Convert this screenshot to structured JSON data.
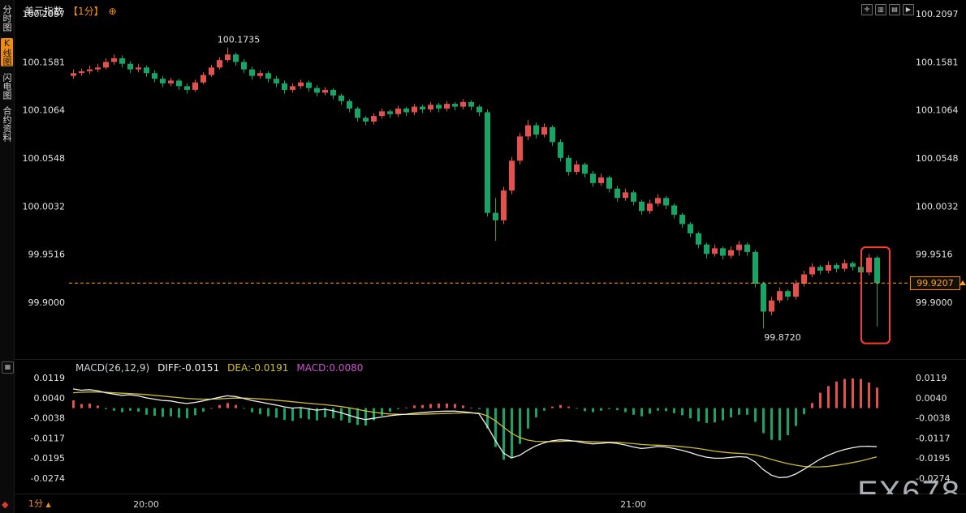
{
  "header": {
    "symbol": "美元指数",
    "interval": "【1分】",
    "settings_glyph": "⊕"
  },
  "toolbar": {
    "icons": [
      {
        "name": "crosshair",
        "glyph": "✛"
      },
      {
        "name": "chart-window",
        "glyph": "▥"
      },
      {
        "name": "indicators",
        "glyph": "▤"
      },
      {
        "name": "collapse",
        "glyph": "▶"
      }
    ]
  },
  "sidebar": {
    "items": [
      {
        "label": "分时图",
        "active": false
      },
      {
        "label": "K线图",
        "active": true
      },
      {
        "label": "闪电图",
        "active": false
      },
      {
        "label": "合约资料",
        "active": false
      }
    ],
    "tool_glyph": "▦",
    "logo_glyph": "◆"
  },
  "footer": {
    "interval_label": "1分",
    "arrow": "▲",
    "watermark": "FX678"
  },
  "price_tag": {
    "value": "99.9207"
  },
  "chart_data": {
    "type": "candlestick",
    "colors": {
      "up": "#e3504d",
      "down": "#17a566",
      "last_price_line": "#ffa21a",
      "high_label": "#ff5d5d",
      "low_label": "#27c184",
      "diff_line": "#f0f0f0",
      "dea_line": "#cdbd2d",
      "highlight_box": "#ff3c28",
      "axis_text": "#e3e3e5"
    },
    "main": {
      "y_ticks": [
        "100.2097",
        "100.1581",
        "100.1064",
        "100.0548",
        "100.0032",
        "99.9516",
        "99.9000"
      ],
      "x_ticks": [
        {
          "label": "20:00",
          "index": 9
        },
        {
          "label": "21:00",
          "index": 69
        }
      ],
      "high_label": {
        "text": "100.1735",
        "index": 19
      },
      "low_label": {
        "text": "99.8720",
        "index": 85
      },
      "last_price": "99.9207",
      "highlight_box": {
        "start_index": 98,
        "end_index": 99,
        "top_price": 99.959,
        "bottom_price": 99.856
      },
      "candles": [
        [
          100.143,
          100.15,
          100.14,
          100.146
        ],
        [
          100.146,
          100.151,
          100.143,
          100.148
        ],
        [
          100.148,
          100.154,
          100.145,
          100.15
        ],
        [
          100.15,
          100.156,
          100.147,
          100.152
        ],
        [
          100.152,
          100.162,
          100.15,
          100.158
        ],
        [
          100.158,
          100.166,
          100.155,
          100.162
        ],
        [
          100.162,
          100.165,
          100.152,
          100.156
        ],
        [
          100.156,
          100.159,
          100.146,
          100.15
        ],
        [
          100.15,
          100.156,
          100.147,
          100.152
        ],
        [
          100.152,
          100.154,
          100.142,
          100.146
        ],
        [
          100.146,
          100.149,
          100.136,
          100.14
        ],
        [
          100.14,
          100.143,
          100.131,
          100.135
        ],
        [
          100.135,
          100.141,
          100.132,
          100.138
        ],
        [
          100.138,
          100.14,
          100.128,
          100.132
        ],
        [
          100.132,
          100.135,
          100.124,
          100.128
        ],
        [
          100.128,
          100.139,
          100.126,
          100.136
        ],
        [
          100.136,
          100.147,
          100.134,
          100.144
        ],
        [
          100.144,
          100.155,
          100.142,
          100.152
        ],
        [
          100.152,
          100.163,
          100.15,
          100.16
        ],
        [
          100.16,
          100.1735,
          100.158,
          100.166
        ],
        [
          100.166,
          100.168,
          100.154,
          100.158
        ],
        [
          100.158,
          100.161,
          100.146,
          100.15
        ],
        [
          100.15,
          100.153,
          100.139,
          100.143
        ],
        [
          100.143,
          100.149,
          100.14,
          100.146
        ],
        [
          100.146,
          100.148,
          100.136,
          100.14
        ],
        [
          100.14,
          100.143,
          100.131,
          100.135
        ],
        [
          100.135,
          100.138,
          100.124,
          100.128
        ],
        [
          100.128,
          100.135,
          100.125,
          100.132
        ],
        [
          100.132,
          100.139,
          100.129,
          100.136
        ],
        [
          100.136,
          100.138,
          100.126,
          100.13
        ],
        [
          100.13,
          100.133,
          100.121,
          100.125
        ],
        [
          100.125,
          100.131,
          100.122,
          100.128
        ],
        [
          100.128,
          100.13,
          100.118,
          100.122
        ],
        [
          100.122,
          100.124,
          100.112,
          100.116
        ],
        [
          100.116,
          100.118,
          100.104,
          100.108
        ],
        [
          100.108,
          100.11,
          100.094,
          100.098
        ],
        [
          100.098,
          100.1,
          100.09,
          100.094
        ],
        [
          100.094,
          100.103,
          100.091,
          100.1
        ],
        [
          100.1,
          100.108,
          100.097,
          100.105
        ],
        [
          100.105,
          100.107,
          100.098,
          100.102
        ],
        [
          100.102,
          100.111,
          100.099,
          100.108
        ],
        [
          100.108,
          100.11,
          100.1,
          100.104
        ],
        [
          100.104,
          100.113,
          100.101,
          100.11
        ],
        [
          100.11,
          100.112,
          100.103,
          100.107
        ],
        [
          100.107,
          100.115,
          100.104,
          100.112
        ],
        [
          100.112,
          100.114,
          100.104,
          100.108
        ],
        [
          100.108,
          100.116,
          100.105,
          100.113
        ],
        [
          100.113,
          100.115,
          100.106,
          100.11
        ],
        [
          100.11,
          100.118,
          100.107,
          100.115
        ],
        [
          100.115,
          100.117,
          100.106,
          100.11
        ],
        [
          100.11,
          100.112,
          100.1,
          100.104
        ],
        [
          100.104,
          100.107,
          99.992,
          99.996
        ],
        [
          99.996,
          100.012,
          99.966,
          99.988
        ],
        [
          99.988,
          100.024,
          99.984,
          100.02
        ],
        [
          100.02,
          100.056,
          100.016,
          100.052
        ],
        [
          100.052,
          100.082,
          100.048,
          100.078
        ],
        [
          100.078,
          100.096,
          100.074,
          100.09
        ],
        [
          100.09,
          100.093,
          100.076,
          100.08
        ],
        [
          100.08,
          100.092,
          100.077,
          100.088
        ],
        [
          100.088,
          100.09,
          100.068,
          100.072
        ],
        [
          100.072,
          100.075,
          100.051,
          100.055
        ],
        [
          100.055,
          100.058,
          100.036,
          100.04
        ],
        [
          100.04,
          100.052,
          100.037,
          100.048
        ],
        [
          100.048,
          100.05,
          100.034,
          100.038
        ],
        [
          100.038,
          100.041,
          100.024,
          100.028
        ],
        [
          100.028,
          100.038,
          100.025,
          100.034
        ],
        [
          100.034,
          100.036,
          100.018,
          100.022
        ],
        [
          100.022,
          100.025,
          100.008,
          100.012
        ],
        [
          100.012,
          100.022,
          100.009,
          100.018
        ],
        [
          100.018,
          100.02,
          100.004,
          100.008
        ],
        [
          100.008,
          100.01,
          99.994,
          99.998
        ],
        [
          99.998,
          100.01,
          99.995,
          100.006
        ],
        [
          100.006,
          100.016,
          100.003,
          100.012
        ],
        [
          100.012,
          100.014,
          100.0,
          100.004
        ],
        [
          100.004,
          100.006,
          99.99,
          99.994
        ],
        [
          99.994,
          99.996,
          99.98,
          99.984
        ],
        [
          99.984,
          99.986,
          99.97,
          99.974
        ],
        [
          99.974,
          99.976,
          99.958,
          99.962
        ],
        [
          99.962,
          99.964,
          99.947,
          99.952
        ],
        [
          99.952,
          99.962,
          99.949,
          99.958
        ],
        [
          99.958,
          99.96,
          99.946,
          99.95
        ],
        [
          99.95,
          99.96,
          99.947,
          99.956
        ],
        [
          99.956,
          99.966,
          99.95,
          99.962
        ],
        [
          99.962,
          99.964,
          99.95,
          99.954
        ],
        [
          99.954,
          99.956,
          99.916,
          99.92
        ],
        [
          99.92,
          99.922,
          99.872,
          99.89
        ],
        [
          99.89,
          99.906,
          99.886,
          99.902
        ],
        [
          99.902,
          99.916,
          99.899,
          99.912
        ],
        [
          99.912,
          99.914,
          99.902,
          99.906
        ],
        [
          99.906,
          99.924,
          99.903,
          99.92
        ],
        [
          99.92,
          99.934,
          99.917,
          99.93
        ],
        [
          99.93,
          99.942,
          99.927,
          99.938
        ],
        [
          99.938,
          99.94,
          99.93,
          99.934
        ],
        [
          99.934,
          99.944,
          99.931,
          99.94
        ],
        [
          99.94,
          99.942,
          99.932,
          99.936
        ],
        [
          99.936,
          99.946,
          99.933,
          99.942
        ],
        [
          99.942,
          99.944,
          99.934,
          99.938
        ],
        [
          99.938,
          99.94,
          99.928,
          99.932
        ],
        [
          99.932,
          99.952,
          99.929,
          99.948
        ],
        [
          99.948,
          99.95,
          99.874,
          99.9207
        ]
      ]
    },
    "macd": {
      "header": {
        "name": "MACD(26,12,9)",
        "diff": "DIFF:-0.0151",
        "dea": "DEA:-0.0191",
        "macd": "MACD:0.0080"
      },
      "y_ticks": [
        "0.0119",
        "0.0040",
        "-0.0038",
        "-0.0117",
        "-0.0195",
        "-0.0274"
      ],
      "diff": [
        0.0075,
        0.007,
        0.0072,
        0.0068,
        0.006,
        0.0055,
        0.005,
        0.0052,
        0.0048,
        0.004,
        0.0035,
        0.003,
        0.0028,
        0.0022,
        0.0018,
        0.0022,
        0.0028,
        0.0035,
        0.0042,
        0.0048,
        0.0045,
        0.0038,
        0.003,
        0.0024,
        0.0018,
        0.0012,
        0.0005,
        0.0,
        0.0002,
        -0.0003,
        -0.0008,
        -0.0005,
        -0.001,
        -0.0018,
        -0.0028,
        -0.0038,
        -0.0045,
        -0.004,
        -0.0035,
        -0.003,
        -0.0026,
        -0.0024,
        -0.002,
        -0.0018,
        -0.0015,
        -0.0013,
        -0.0012,
        -0.0012,
        -0.0014,
        -0.0018,
        -0.0022,
        -0.007,
        -0.0125,
        -0.0175,
        -0.0195,
        -0.0185,
        -0.0165,
        -0.0148,
        -0.0136,
        -0.0128,
        -0.0124,
        -0.0126,
        -0.013,
        -0.0136,
        -0.014,
        -0.0138,
        -0.0135,
        -0.0138,
        -0.0144,
        -0.0152,
        -0.0158,
        -0.0155,
        -0.015,
        -0.0152,
        -0.0158,
        -0.0165,
        -0.0174,
        -0.0184,
        -0.0192,
        -0.0196,
        -0.0196,
        -0.0193,
        -0.019,
        -0.0192,
        -0.021,
        -0.024,
        -0.0262,
        -0.0272,
        -0.027,
        -0.0258,
        -0.024,
        -0.022,
        -0.02,
        -0.0185,
        -0.0172,
        -0.0162,
        -0.0155,
        -0.015,
        -0.0149,
        -0.0151
      ],
      "dea": [
        0.006,
        0.0062,
        0.0063,
        0.0063,
        0.0062,
        0.006,
        0.0058,
        0.0057,
        0.0055,
        0.0053,
        0.005,
        0.0047,
        0.0044,
        0.0041,
        0.0038,
        0.0036,
        0.0035,
        0.0035,
        0.0036,
        0.0038,
        0.0039,
        0.0039,
        0.0038,
        0.0036,
        0.0034,
        0.0031,
        0.0028,
        0.0025,
        0.0022,
        0.0019,
        0.0016,
        0.0013,
        0.001,
        0.0006,
        0.0001,
        -0.0005,
        -0.0011,
        -0.0016,
        -0.002,
        -0.0023,
        -0.0024,
        -0.0025,
        -0.0025,
        -0.0024,
        -0.0023,
        -0.0022,
        -0.0021,
        -0.002,
        -0.0019,
        -0.0019,
        -0.002,
        -0.003,
        -0.0049,
        -0.0074,
        -0.0098,
        -0.0115,
        -0.0125,
        -0.013,
        -0.0131,
        -0.0131,
        -0.013,
        -0.0129,
        -0.0129,
        -0.013,
        -0.0132,
        -0.0133,
        -0.0133,
        -0.0134,
        -0.0136,
        -0.0139,
        -0.0142,
        -0.0144,
        -0.0145,
        -0.0146,
        -0.0148,
        -0.0151,
        -0.0154,
        -0.0158,
        -0.0163,
        -0.0168,
        -0.0172,
        -0.0175,
        -0.0177,
        -0.0179,
        -0.0183,
        -0.0191,
        -0.02,
        -0.0209,
        -0.0217,
        -0.0223,
        -0.0228,
        -0.023,
        -0.023,
        -0.0228,
        -0.0224,
        -0.0219,
        -0.0213,
        -0.0207,
        -0.0199,
        -0.0191
      ]
    }
  }
}
